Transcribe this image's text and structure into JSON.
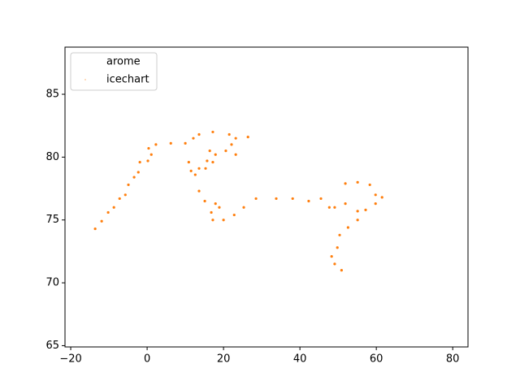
{
  "chart_data": {
    "type": "scatter",
    "xlim": [
      -21.5,
      84
    ],
    "ylim": [
      64.9,
      88.75
    ],
    "xticks": [
      {
        "value": -20,
        "label": "−20"
      },
      0,
      20,
      40,
      60,
      80
    ],
    "yticks": [
      65,
      70,
      75,
      80,
      85
    ],
    "legend": "upper left",
    "series": [
      {
        "name": "arome",
        "color": "#1f77b4",
        "x": [],
        "y": []
      },
      {
        "name": "icechart",
        "color": "#ff7f0e",
        "x": [
          -13.6,
          -11.9,
          -10.2,
          -8.7,
          -7.2,
          -5.7,
          -4.9,
          -3.4,
          -2.3,
          -1.9,
          0.2,
          1.1,
          0.4,
          2.3,
          6.2,
          10.0,
          12.1,
          13.6,
          17.2,
          21.5,
          26.4,
          23.2,
          22.1,
          23.2,
          20.6,
          17.9,
          16.4,
          17.2,
          15.7,
          12.6,
          13.6,
          15.1,
          17.9,
          18.9,
          16.8,
          17.2,
          20.0,
          22.8,
          25.3,
          28.5,
          33.8,
          38.1,
          42.3,
          45.5,
          47.7,
          49.1,
          51.9,
          51.9,
          55.1,
          58.3,
          59.8,
          61.5,
          59.8,
          57.2,
          55.1,
          55.1,
          52.6,
          50.4,
          49.8,
          48.3,
          49.1,
          50.9,
          10.9,
          13.6,
          15.3,
          11.5
        ],
        "y": [
          74.3,
          74.9,
          75.6,
          76.0,
          76.7,
          77.0,
          77.8,
          78.4,
          78.8,
          79.6,
          79.7,
          80.2,
          80.7,
          81.0,
          81.1,
          81.1,
          81.5,
          81.8,
          82.0,
          81.8,
          81.6,
          81.5,
          81.0,
          80.2,
          80.5,
          80.2,
          80.5,
          79.6,
          79.7,
          78.6,
          77.3,
          76.5,
          76.3,
          76.0,
          75.6,
          75.0,
          75.0,
          75.4,
          76.0,
          76.7,
          76.7,
          76.7,
          76.5,
          76.7,
          76.0,
          76.0,
          76.3,
          77.9,
          78.0,
          77.8,
          77.0,
          76.8,
          76.3,
          75.8,
          75.7,
          75.0,
          74.4,
          73.8,
          72.8,
          72.1,
          71.5,
          71.0,
          79.6,
          79.1,
          79.1,
          78.9
        ]
      }
    ]
  }
}
